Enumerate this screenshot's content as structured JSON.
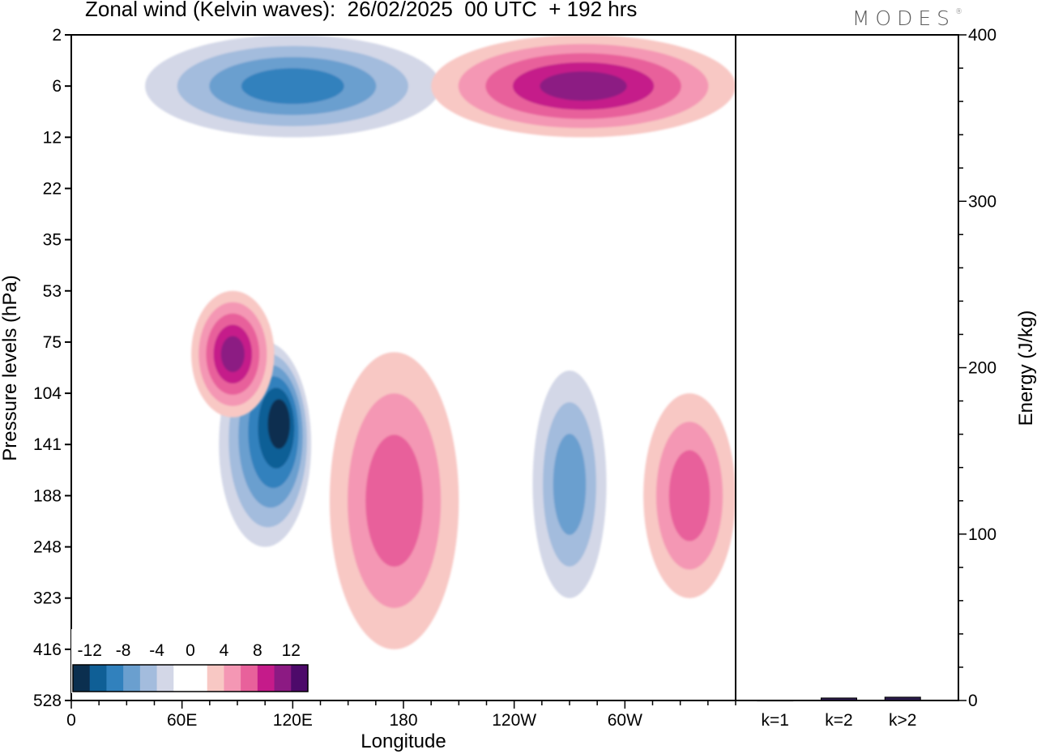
{
  "title": "Zonal wind (Kelvin waves):  26/02/2025  00 UTC  + 192 hrs",
  "logo": "MODES",
  "colors": {
    "neg": [
      "#0b2f4f",
      "#0f5f96",
      "#3181bd",
      "#6a9fcf",
      "#a3bcdd",
      "#d3d7e7"
    ],
    "zero": "#ffffff",
    "pos": [
      "#f8c8c4",
      "#f497b4",
      "#e8619b",
      "#c51b8a",
      "#8c1a83",
      "#4d0a6a"
    ]
  },
  "chart_data": [
    {
      "type": "heatmap",
      "title": "Zonal wind (Kelvin waves):  26/02/2025  00 UTC  + 192 hrs",
      "xlabel": "Longitude",
      "ylabel": "Pressure levels (hPa)",
      "x_ticks": [
        "0",
        "60E",
        "120E",
        "180",
        "120W",
        "60W"
      ],
      "x_tick_degrees": [
        0,
        60,
        120,
        180,
        240,
        300
      ],
      "xlim": [
        0,
        360
      ],
      "y_ticks": [
        "2",
        "6",
        "12",
        "22",
        "35",
        "53",
        "75",
        "104",
        "141",
        "188",
        "248",
        "323",
        "416",
        "528"
      ],
      "colorbar_labels": [
        "-12",
        "-8",
        "-4",
        "0",
        "4",
        "8",
        "12"
      ],
      "colorbar_levels": [
        -14,
        -12,
        -10,
        -8,
        -6,
        -4,
        -2,
        0,
        2,
        4,
        6,
        8,
        10,
        12,
        14
      ],
      "features": [
        {
          "lon_range": [
            80,
            130
          ],
          "p_range": [
            75,
            248
          ],
          "sign": "negative",
          "peak": -12
        },
        {
          "lon_range": [
            65,
            110
          ],
          "p_range": [
            53,
            120
          ],
          "sign": "positive",
          "peak": 10
        },
        {
          "lon_range": [
            140,
            210
          ],
          "p_range": [
            80,
            416
          ],
          "sign": "positive",
          "peak": 6
        },
        {
          "lon_range": [
            250,
            290
          ],
          "p_range": [
            90,
            323
          ],
          "sign": "negative",
          "peak": -6
        },
        {
          "lon_range": [
            310,
            360
          ],
          "p_range": [
            104,
            323
          ],
          "sign": "positive",
          "peak": 6
        },
        {
          "lon_range": [
            40,
            200
          ],
          "p_range": [
            2,
            12
          ],
          "sign": "negative",
          "peak": -8
        },
        {
          "lon_range": [
            195,
            360
          ],
          "p_range": [
            2,
            12
          ],
          "sign": "positive",
          "peak": 10
        }
      ]
    },
    {
      "type": "bar",
      "ylabel": "Energy (J/kg)",
      "categories": [
        "k=1",
        "k=2",
        "k>2"
      ],
      "values": [
        0.2,
        1.5,
        2.0
      ],
      "ylim": [
        0,
        400
      ],
      "y_ticks": [
        "0",
        "100",
        "200",
        "300",
        "400"
      ]
    }
  ]
}
